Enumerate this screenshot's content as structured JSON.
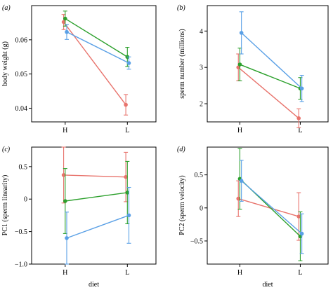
{
  "chart_data": [
    {
      "type": "line",
      "panel_label": "(a)",
      "ylabel": "body weight (g)",
      "xlabel": "",
      "categories": [
        "H",
        "L"
      ],
      "ylim": [
        0.036,
        0.07
      ],
      "yticks": [
        0.04,
        0.05,
        0.06
      ],
      "ytick_labels": [
        "0.04",
        "0.05",
        "0.06"
      ],
      "series": [
        {
          "color": "#e8736c",
          "values": [
            0.0652,
            0.041
          ],
          "err": [
            0.0022,
            0.003
          ]
        },
        {
          "color": "#2ca02c",
          "values": [
            0.0662,
            0.055
          ],
          "err": [
            0.0022,
            0.0028
          ]
        },
        {
          "color": "#5aa0e6",
          "values": [
            0.0623,
            0.0532
          ],
          "err": [
            0.0022,
            0.0018
          ]
        }
      ]
    },
    {
      "type": "line",
      "panel_label": "(b)",
      "ylabel": "sperm number (millions)",
      "xlabel": "",
      "categories": [
        "H",
        "L"
      ],
      "ylim": [
        1.5,
        4.7
      ],
      "yticks": [
        2,
        3,
        4
      ],
      "ytick_labels": [
        "2",
        "3",
        "4"
      ],
      "series": [
        {
          "color": "#e8736c",
          "values": [
            3.0,
            1.6
          ],
          "err": [
            0.37,
            0.26
          ]
        },
        {
          "color": "#2ca02c",
          "values": [
            3.08,
            2.42
          ],
          "err": [
            0.45,
            0.3
          ]
        },
        {
          "color": "#5aa0e6",
          "values": [
            3.95,
            2.42
          ],
          "err": [
            0.58,
            0.36
          ]
        }
      ]
    },
    {
      "type": "line",
      "panel_label": "(c)",
      "ylabel": "PC1 (sperm linearity)",
      "xlabel": "diet",
      "categories": [
        "H",
        "L"
      ],
      "ylim": [
        -1.0,
        0.8
      ],
      "yticks": [
        -1.0,
        -0.5,
        0,
        0.5
      ],
      "ytick_labels": [
        "−1.0",
        "−0.5",
        "0",
        "0.5"
      ],
      "series": [
        {
          "color": "#e8736c",
          "values": [
            0.37,
            0.34
          ],
          "err": [
            0.43,
            0.38
          ]
        },
        {
          "color": "#2ca02c",
          "values": [
            -0.03,
            0.1
          ],
          "err": [
            0.5,
            0.48
          ]
        },
        {
          "color": "#5aa0e6",
          "values": [
            -0.6,
            -0.25
          ],
          "err": [
            0.4,
            0.43
          ]
        }
      ]
    },
    {
      "type": "line",
      "panel_label": "(d)",
      "ylabel": "PC2 (sperm velocity)",
      "xlabel": "diet",
      "categories": [
        "H",
        "L"
      ],
      "ylim": [
        -0.85,
        0.92
      ],
      "yticks": [
        -0.5,
        0,
        0.5
      ],
      "ytick_labels": [
        "−0.5",
        "0",
        "0.5"
      ],
      "series": [
        {
          "color": "#e8736c",
          "values": [
            0.14,
            -0.13
          ],
          "err": [
            0.27,
            0.36
          ]
        },
        {
          "color": "#2ca02c",
          "values": [
            0.44,
            -0.43
          ],
          "err": [
            0.46,
            0.37
          ]
        },
        {
          "color": "#5aa0e6",
          "values": [
            0.41,
            -0.39
          ],
          "err": [
            0.31,
            0.3
          ]
        }
      ]
    }
  ]
}
